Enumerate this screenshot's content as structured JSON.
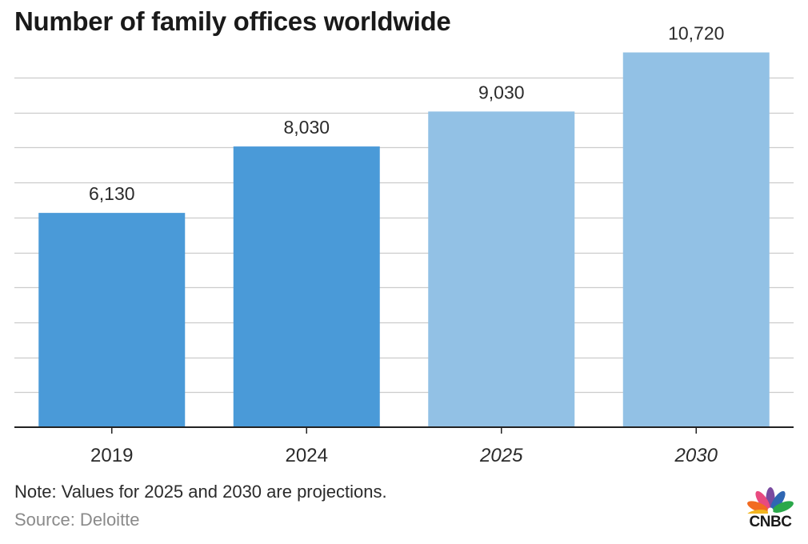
{
  "chart_data": {
    "type": "bar",
    "title": "Number of family offices worldwide",
    "categories": [
      "2019",
      "2024",
      "2025",
      "2030"
    ],
    "values": [
      6130,
      8030,
      9030,
      10720
    ],
    "value_labels": [
      "6,130",
      "8,030",
      "9,030",
      "10,720"
    ],
    "projected": [
      false,
      false,
      true,
      true
    ],
    "ylim": [
      0,
      11000
    ],
    "gridline_step": 1000,
    "grid": true,
    "xlabel": "",
    "ylabel": "",
    "colors": {
      "actual": "#4a9ad8",
      "projected": "#92c1e5",
      "grid": "#cccccc",
      "axis": "#222222"
    }
  },
  "note": "Note: Values for 2025 and 2030 are projections.",
  "source": "Source: Deloitte",
  "logo": {
    "text": "CNBC",
    "icon": "nbc-peacock-icon"
  }
}
